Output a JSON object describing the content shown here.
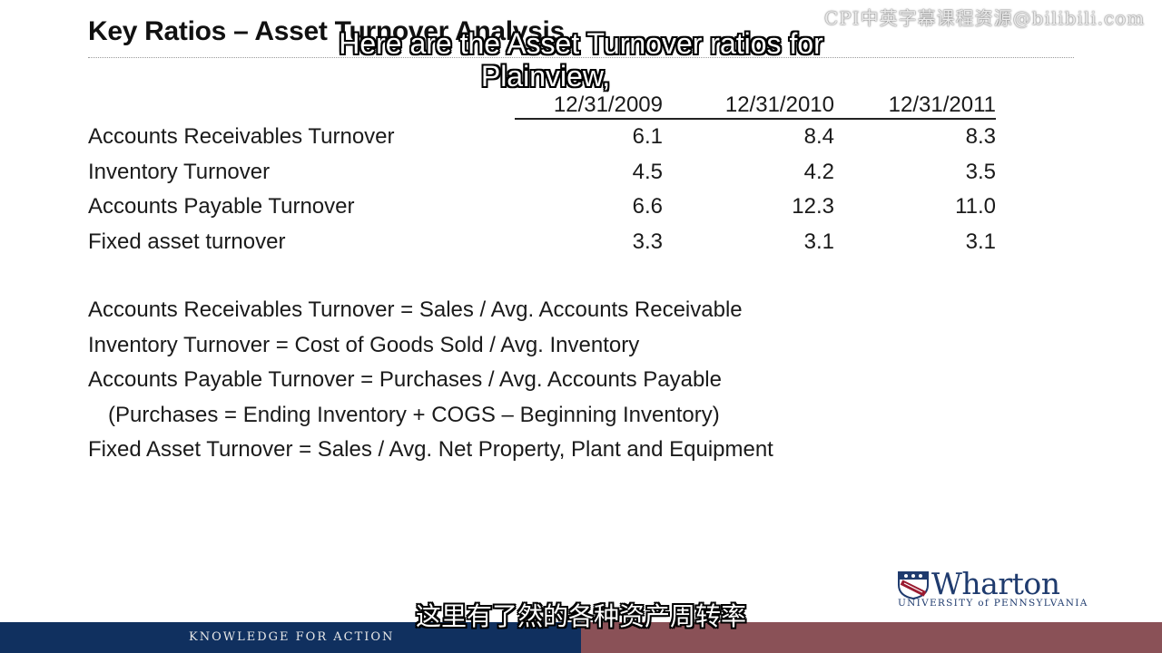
{
  "slide": {
    "title": "Key Ratios – Asset Turnover Analysis"
  },
  "watermark": "CPI中英字幕课程资源@bilibili.com",
  "captions": {
    "top_line1": "Here are the Asset Turnover ratios for",
    "top_line2": "Plainview,",
    "bottom": "这里有了然的各种资产周转率"
  },
  "table": {
    "columns": [
      "12/31/2009",
      "12/31/2010",
      "12/31/2011"
    ],
    "rows": [
      {
        "label": "Accounts Receivables Turnover",
        "values": [
          "6.1",
          "8.4",
          "8.3"
        ]
      },
      {
        "label": "Inventory Turnover",
        "values": [
          "4.5",
          "4.2",
          "3.5"
        ]
      },
      {
        "label": "Accounts Payable Turnover",
        "values": [
          "6.6",
          "12.3",
          "11.0"
        ]
      },
      {
        "label": "Fixed asset turnover",
        "values": [
          "3.3",
          "3.1",
          "3.1"
        ]
      }
    ]
  },
  "formulas": [
    "Accounts Receivables Turnover = Sales / Avg. Accounts Receivable",
    "Inventory Turnover = Cost of Goods Sold / Avg. Inventory",
    "Accounts Payable Turnover = Purchases / Avg. Accounts Payable",
    "(Purchases = Ending Inventory + COGS – Beginning Inventory)",
    "Fixed Asset Turnover = Sales / Avg. Net Property, Plant and Equipment"
  ],
  "logo": {
    "name": "Wharton",
    "subtitle": "UNIVERSITY of PENNSYLVANIA",
    "shield_icon": "penn-shield-icon",
    "colors": {
      "navy": "#1f3b6e",
      "red": "#9b1b30"
    }
  },
  "footer": {
    "text": "KNOWLEDGE FOR ACTION",
    "left_color": "#10305f",
    "right_color": "#8a5157"
  }
}
